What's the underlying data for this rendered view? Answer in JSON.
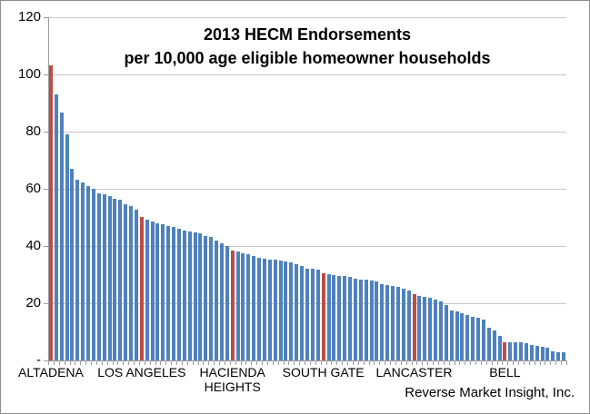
{
  "chart_data": {
    "type": "bar",
    "title_line1": "2013 HECM Endorsements",
    "title_line2": "per 10,000 age eligible homeowner households",
    "watermark": "Reverse Market Insight, Inc.",
    "ylim": [
      0,
      120
    ],
    "grid": true,
    "y_ticks": [
      {
        "value": 120,
        "label": "120"
      },
      {
        "value": 100,
        "label": "100"
      },
      {
        "value": 80,
        "label": "80"
      },
      {
        "value": 60,
        "label": "60"
      },
      {
        "value": 40,
        "label": "40"
      },
      {
        "value": 20,
        "label": "20"
      },
      {
        "value": 0,
        "label": "-"
      }
    ],
    "bar_color": "#4F81BD",
    "highlight_color": "#BF4B47",
    "highlight_indices": [
      0,
      17,
      34,
      51,
      68,
      85
    ],
    "labeled_categories": [
      {
        "index": 0,
        "label": "ALTADENA"
      },
      {
        "index": 17,
        "label": "LOS ANGELES"
      },
      {
        "index": 34,
        "label": "HACIENDA HEIGHTS"
      },
      {
        "index": 51,
        "label": "SOUTH GATE"
      },
      {
        "index": 68,
        "label": "LANCASTER"
      },
      {
        "index": 85,
        "label": "BELL"
      }
    ],
    "values": [
      103,
      93,
      86.5,
      79,
      67,
      63,
      62,
      61,
      60,
      58.5,
      58,
      57.5,
      56.5,
      56,
      54.5,
      54,
      52.5,
      50,
      49,
      48.5,
      48,
      47.5,
      47,
      46.5,
      46,
      45.5,
      45,
      44.8,
      44.5,
      43.5,
      43,
      42,
      41,
      40,
      38.5,
      38,
      37.5,
      37,
      36.5,
      35.7,
      35.5,
      35.3,
      35.1,
      34.8,
      34.5,
      34.2,
      33.7,
      33,
      32.1,
      31.9,
      31.7,
      30.5,
      30.2,
      29.8,
      29.6,
      29.5,
      29.2,
      28.5,
      28.3,
      28.2,
      28,
      27.6,
      26.7,
      26.3,
      26,
      25.7,
      25,
      24.4,
      23,
      22.4,
      22.2,
      22,
      21.3,
      20.6,
      19.5,
      17.5,
      17,
      16.5,
      16,
      15.3,
      14.9,
      14.4,
      11.4,
      10.4,
      8.5,
      6.2,
      6.4,
      6.3,
      6.2,
      5.9,
      5.5,
      5.0,
      4.7,
      4.3,
      3.3,
      2.8,
      3.0
    ]
  }
}
